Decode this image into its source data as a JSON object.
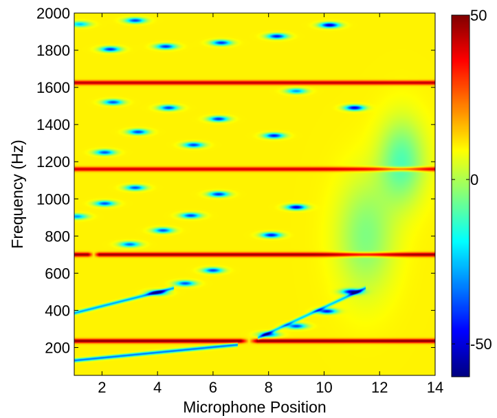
{
  "chart_data": {
    "type": "heatmap",
    "title": "",
    "xlabel": "Microphone Position",
    "ylabel": "Frequency (Hz)",
    "xlim": [
      1,
      14
    ],
    "ylim": [
      50,
      2000
    ],
    "xticks": [
      2,
      4,
      6,
      8,
      10,
      12,
      14
    ],
    "yticks": [
      200,
      400,
      600,
      800,
      1000,
      1200,
      1400,
      1600,
      1800,
      2000
    ],
    "colorbar": {
      "range": [
        -60,
        50
      ],
      "ticks": [
        -50,
        0,
        50
      ],
      "colormap": "jet"
    },
    "background_value": 10,
    "bands": [
      {
        "freq": 235,
        "x_from": 1,
        "x_to": 14,
        "value": 50,
        "gap": [
          7.0,
          7.6
        ]
      },
      {
        "freq": 700,
        "x_from": 1,
        "x_to": 14,
        "value": 48,
        "gap": [
          1.5,
          1.9
        ]
      },
      {
        "freq": 1160,
        "x_from": 1,
        "x_to": 14,
        "value": 42
      },
      {
        "freq": 1625,
        "x_from": 1,
        "x_to": 14,
        "value": 44
      }
    ],
    "spots": [
      {
        "x": 1.2,
        "freq": 1940,
        "value": -25
      },
      {
        "x": 3.2,
        "freq": 1960,
        "value": -40
      },
      {
        "x": 2.3,
        "freq": 1805,
        "value": -42
      },
      {
        "x": 4.3,
        "freq": 1820,
        "value": -42
      },
      {
        "x": 6.3,
        "freq": 1840,
        "value": -42
      },
      {
        "x": 8.3,
        "freq": 1875,
        "value": -45
      },
      {
        "x": 10.2,
        "freq": 1935,
        "value": -52
      },
      {
        "x": 2.4,
        "freq": 1520,
        "value": -38
      },
      {
        "x": 4.4,
        "freq": 1490,
        "value": -40
      },
      {
        "x": 6.2,
        "freq": 1430,
        "value": -42
      },
      {
        "x": 11.1,
        "freq": 1490,
        "value": -50
      },
      {
        "x": 9.0,
        "freq": 1580,
        "value": -30
      },
      {
        "x": 3.3,
        "freq": 1360,
        "value": -40
      },
      {
        "x": 5.3,
        "freq": 1290,
        "value": -40
      },
      {
        "x": 8.2,
        "freq": 1340,
        "value": -45
      },
      {
        "x": 2.1,
        "freq": 1250,
        "value": -38
      },
      {
        "x": 3.2,
        "freq": 1060,
        "value": -38
      },
      {
        "x": 2.1,
        "freq": 975,
        "value": -38
      },
      {
        "x": 6.2,
        "freq": 1025,
        "value": -42
      },
      {
        "x": 5.2,
        "freq": 910,
        "value": -40
      },
      {
        "x": 9.0,
        "freq": 955,
        "value": -50
      },
      {
        "x": 1.1,
        "freq": 905,
        "value": -30
      },
      {
        "x": 4.2,
        "freq": 830,
        "value": -38
      },
      {
        "x": 8.1,
        "freq": 805,
        "value": -45
      },
      {
        "x": 3.0,
        "freq": 755,
        "value": -35
      },
      {
        "x": 6.0,
        "freq": 615,
        "value": -40
      },
      {
        "x": 5.0,
        "freq": 545,
        "value": -38
      },
      {
        "x": 4.0,
        "freq": 495,
        "value": -38
      },
      {
        "x": 11.0,
        "freq": 500,
        "value": -50
      },
      {
        "x": 10.1,
        "freq": 395,
        "value": -45
      },
      {
        "x": 9.0,
        "freq": 315,
        "value": -40
      },
      {
        "x": 8.0,
        "freq": 270,
        "value": -35
      }
    ],
    "streaks": [
      {
        "x1": 1,
        "f1": 130,
        "x2": 6.9,
        "f2": 215,
        "value": -35
      },
      {
        "x1": 1,
        "f1": 385,
        "x2": 4.6,
        "f2": 520,
        "value": -30
      },
      {
        "x1": 7.6,
        "f1": 250,
        "x2": 11.5,
        "f2": 520,
        "value": -25
      }
    ],
    "diffuse": [
      {
        "x": 12.8,
        "freq": 1200,
        "rx": 0.8,
        "rf": 220,
        "value": -10
      },
      {
        "x": 11.5,
        "freq": 800,
        "rx": 1.0,
        "rf": 300,
        "value": -5
      }
    ]
  }
}
